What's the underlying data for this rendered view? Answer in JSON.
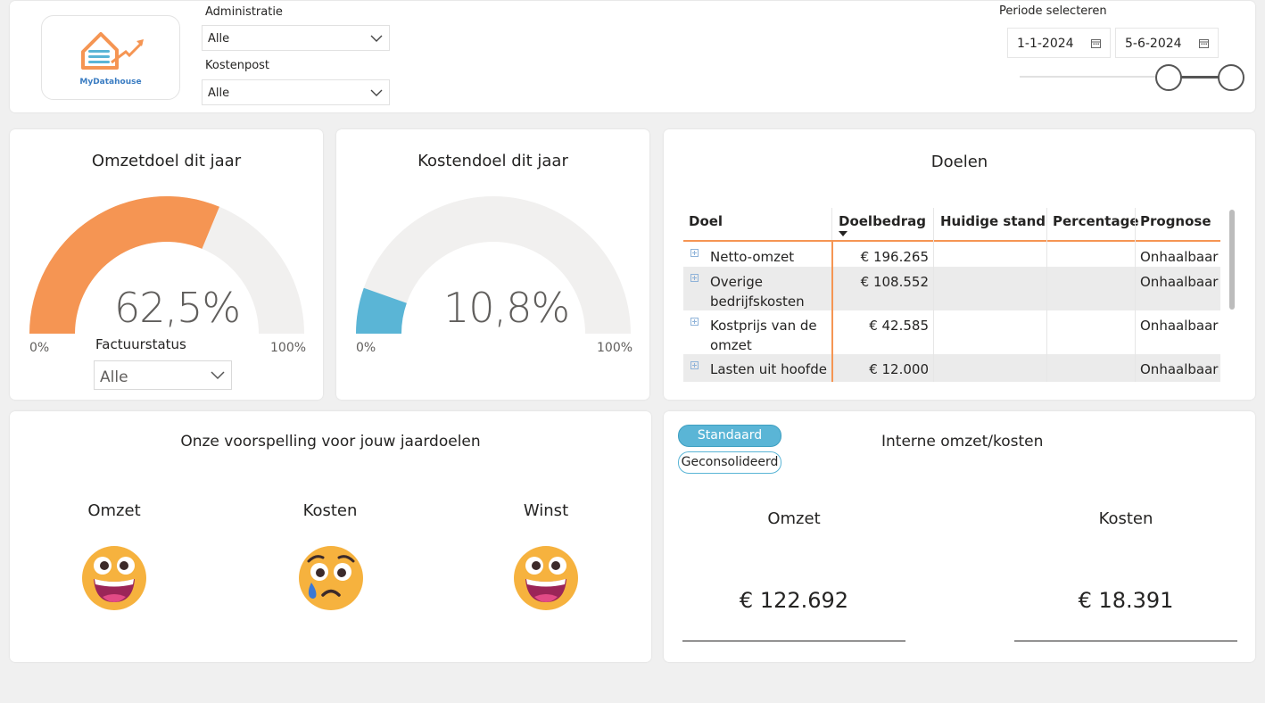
{
  "header": {
    "logo_text": "MyDatahouse",
    "administratie": {
      "label": "Administratie",
      "value": "Alle"
    },
    "kostenpost": {
      "label": "Kostenpost",
      "value": "Alle"
    },
    "periode": {
      "label": "Periode selecteren",
      "start": "1-1-2024",
      "end": "5-6-2024"
    }
  },
  "gauges": [
    {
      "title": "Omzetdoel dit jaar",
      "value": 62.5,
      "value_label": "62,5%",
      "min_label": "0%",
      "max_label": "100%",
      "color": "#f59553"
    },
    {
      "title": "Kostendoel dit jaar",
      "value": 10.8,
      "value_label": "10,8%",
      "min_label": "0%",
      "max_label": "100%",
      "color": "#5ab5d6"
    }
  ],
  "factuurstatus": {
    "label": "Factuurstatus",
    "value": "Alle"
  },
  "doelen": {
    "title": "Doelen",
    "columns": [
      "Doel",
      "Doelbedrag",
      "Huidige stand",
      "Percentage",
      "Prognose"
    ],
    "rows": [
      {
        "doel": "Netto-omzet",
        "doelbedrag": "€ 196.265",
        "huidige": "",
        "percentage": "",
        "prognose": "Onhaalbaar"
      },
      {
        "doel": "Overige bedrijfskosten",
        "doelbedrag": "€ 108.552",
        "huidige": "",
        "percentage": "",
        "prognose": "Onhaalbaar"
      },
      {
        "doel": "Kostprijs van de omzet",
        "doelbedrag": "€ 42.585",
        "huidige": "",
        "percentage": "",
        "prognose": "Onhaalbaar"
      },
      {
        "doel": "Lasten uit hoofde",
        "doelbedrag": "€ 12.000",
        "huidige": "",
        "percentage": "",
        "prognose": "Onhaalbaar"
      }
    ]
  },
  "voorspelling": {
    "title": "Onze voorspelling voor jouw jaardoelen",
    "items": [
      {
        "label": "Omzet",
        "emoji": "grinning-face-icon"
      },
      {
        "label": "Kosten",
        "emoji": "sad-tear-face-icon"
      },
      {
        "label": "Winst",
        "emoji": "grinning-face-icon"
      }
    ]
  },
  "intern": {
    "title": "Interne omzet/kosten",
    "toggle": {
      "standaard": "Standaard",
      "geconsolideerd": "Geconsolideerd",
      "active": "Standaard"
    },
    "omzet": {
      "label": "Omzet",
      "value": "€ 122.692"
    },
    "kosten": {
      "label": "Kosten",
      "value": "€ 18.391"
    }
  },
  "colors": {
    "accent": "#f59553",
    "blue": "#5ab5d6",
    "gauge_track": "#f1f0ef"
  }
}
